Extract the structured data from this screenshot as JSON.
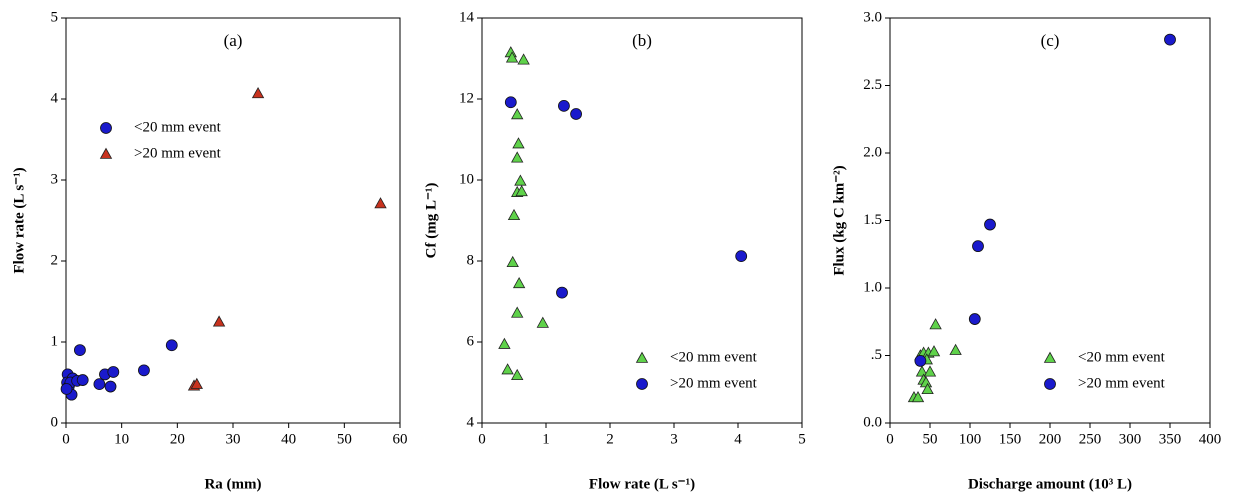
{
  "chart_data": [
    {
      "type": "scatter",
      "title": "(a)",
      "x_label": "Ra (mm)",
      "y_label": "Flow rate (L s⁻¹)",
      "xlim": [
        0,
        60
      ],
      "xticks": [
        0,
        10,
        20,
        30,
        40,
        50,
        60
      ],
      "ylim": [
        0,
        5
      ],
      "yticks": [
        0,
        1,
        2,
        3,
        4,
        5
      ],
      "legend": "upper left",
      "series": [
        {
          "name": "<20 mm event",
          "color": "#1a1acc",
          "marker": "circle",
          "x": [
            0.3,
            0.2,
            0.5,
            1,
            1.2,
            0.8,
            2,
            2.5,
            3,
            6,
            7,
            8,
            8.5,
            14,
            19,
            0.1
          ],
          "y": [
            0.6,
            0.5,
            0.45,
            0.35,
            0.55,
            0.5,
            0.52,
            0.9,
            0.53,
            0.48,
            0.6,
            0.45,
            0.63,
            0.65,
            0.96,
            0.42
          ]
        },
        {
          "name": ">20 mm event",
          "color": "#c8321e",
          "marker": "triangle",
          "x": [
            23,
            23.5,
            27.5,
            34.5,
            56.5
          ],
          "y": [
            0.46,
            0.48,
            1.25,
            4.07,
            2.71
          ]
        }
      ]
    },
    {
      "type": "scatter",
      "title": "(b)",
      "x_label": "Flow rate (L s⁻¹)",
      "y_label": "Cf (mg L⁻¹)",
      "xlim": [
        0,
        5
      ],
      "xticks": [
        0,
        1,
        2,
        3,
        4,
        5
      ],
      "ylim": [
        4,
        14
      ],
      "yticks": [
        4,
        6,
        8,
        10,
        12,
        14
      ],
      "legend": "lower right",
      "series": [
        {
          "name": "<20 mm event",
          "color": "#5fd24a",
          "marker": "triangle",
          "x": [
            0.45,
            0.47,
            0.65,
            0.55,
            0.57,
            0.55,
            0.6,
            0.55,
            0.62,
            0.5,
            0.48,
            0.58,
            0.55,
            0.95,
            0.35,
            0.4,
            0.55
          ],
          "y": [
            13.15,
            13.02,
            12.97,
            11.62,
            10.9,
            10.55,
            9.98,
            9.7,
            9.72,
            9.13,
            7.97,
            7.45,
            6.72,
            6.47,
            5.95,
            5.32,
            5.18
          ]
        },
        {
          "name": ">20 mm event",
          "color": "#1a1acc",
          "marker": "circle",
          "x": [
            0.45,
            1.28,
            1.47,
            1.25,
            4.05
          ],
          "y": [
            11.92,
            11.83,
            11.63,
            7.22,
            8.12
          ]
        }
      ]
    },
    {
      "type": "scatter",
      "title": "(c)",
      "x_label": "Discharge amount (10³ L)",
      "y_label": "Flux (kg C km⁻²)",
      "xlim": [
        0,
        400
      ],
      "xticks": [
        0,
        50,
        100,
        150,
        200,
        250,
        300,
        350,
        400
      ],
      "ylim": [
        0,
        3
      ],
      "yticks": [
        {
          "value": 0,
          "label": "0.0"
        },
        {
          "value": 0.5,
          "label": ".5"
        },
        {
          "value": 1,
          "label": "1.0"
        },
        {
          "value": 1.5,
          "label": "1.5"
        },
        {
          "value": 2,
          "label": "2.0"
        },
        {
          "value": 2.5,
          "label": "2.5"
        },
        {
          "value": 3,
          "label": "3.0"
        }
      ],
      "legend": "lower right",
      "series": [
        {
          "name": "<20 mm event",
          "color": "#5fd24a",
          "marker": "triangle",
          "x": [
            30,
            35,
            38,
            42,
            40,
            42,
            45,
            47,
            50,
            48,
            55,
            57,
            82,
            46
          ],
          "y": [
            0.19,
            0.19,
            0.5,
            0.52,
            0.38,
            0.32,
            0.3,
            0.25,
            0.38,
            0.52,
            0.53,
            0.73,
            0.54,
            0.47
          ]
        },
        {
          "name": ">20 mm event",
          "color": "#1a1acc",
          "marker": "circle",
          "x": [
            38,
            106,
            110,
            125,
            350
          ],
          "y": [
            0.46,
            0.77,
            1.31,
            1.47,
            2.84
          ]
        }
      ]
    }
  ]
}
